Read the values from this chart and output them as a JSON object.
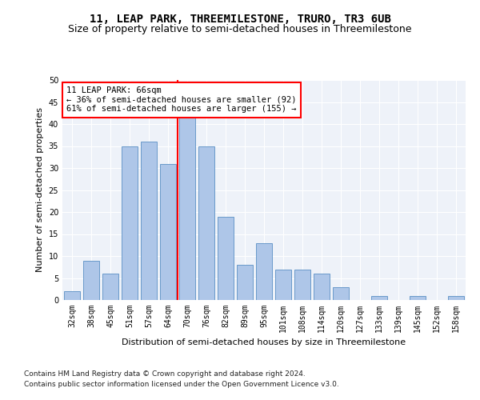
{
  "title": "11, LEAP PARK, THREEMILESTONE, TRURO, TR3 6UB",
  "subtitle": "Size of property relative to semi-detached houses in Threemilestone",
  "xlabel": "Distribution of semi-detached houses by size in Threemilestone",
  "ylabel": "Number of semi-detached properties",
  "categories": [
    "32sqm",
    "38sqm",
    "45sqm",
    "51sqm",
    "57sqm",
    "64sqm",
    "70sqm",
    "76sqm",
    "82sqm",
    "89sqm",
    "95sqm",
    "101sqm",
    "108sqm",
    "114sqm",
    "120sqm",
    "127sqm",
    "133sqm",
    "139sqm",
    "145sqm",
    "152sqm",
    "158sqm"
  ],
  "values": [
    2,
    9,
    6,
    35,
    36,
    31,
    42,
    35,
    19,
    8,
    13,
    7,
    7,
    6,
    3,
    0,
    1,
    0,
    1,
    0,
    1
  ],
  "bar_color": "#aec6e8",
  "bar_edge_color": "#5a8fc4",
  "subject_line_color": "red",
  "annotation_text": "11 LEAP PARK: 66sqm\n← 36% of semi-detached houses are smaller (92)\n61% of semi-detached houses are larger (155) →",
  "annotation_box_color": "white",
  "annotation_box_edge_color": "red",
  "ylim": [
    0,
    50
  ],
  "yticks": [
    0,
    5,
    10,
    15,
    20,
    25,
    30,
    35,
    40,
    45,
    50
  ],
  "footnote1": "Contains HM Land Registry data © Crown copyright and database right 2024.",
  "footnote2": "Contains public sector information licensed under the Open Government Licence v3.0.",
  "background_color": "#eef2f9",
  "grid_color": "white",
  "title_fontsize": 10,
  "subtitle_fontsize": 9,
  "axis_label_fontsize": 8,
  "tick_fontsize": 7,
  "annotation_fontsize": 7.5,
  "footnote_fontsize": 6.5
}
